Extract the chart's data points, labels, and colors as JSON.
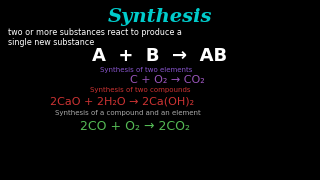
{
  "bg_color": "#000000",
  "title": "Synthesis",
  "title_color": "#00cccc",
  "title_fontsize": 14,
  "subtitle1": "two or more substances react to produce a",
  "subtitle2": "single new substance",
  "subtitle_color": "#ffffff",
  "subtitle_fontsize": 5.8,
  "eq_general": "A  +  B  →  AB",
  "eq_general_color": "#ffffff",
  "eq_general_fontsize": 13,
  "label1": "Synthesis of two elements",
  "label1_color": "#8855cc",
  "label_fontsize": 5.0,
  "eq1": "C + O₂ → CO₂",
  "eq1_color": "#9955bb",
  "eq1_fontsize": 8,
  "label2": "Synthesis of two compounds",
  "label2_color": "#cc3333",
  "eq2": "2CaO + 2H₂O → 2Ca(OH)₂",
  "eq2_color": "#cc3333",
  "eq2_fontsize": 8,
  "label3": "Synthesis of a compound and an element",
  "label3_color": "#aaaaaa",
  "eq3": "2CO + O₂ → 2CO₂",
  "eq3_color": "#55bb55",
  "eq3_fontsize": 9
}
